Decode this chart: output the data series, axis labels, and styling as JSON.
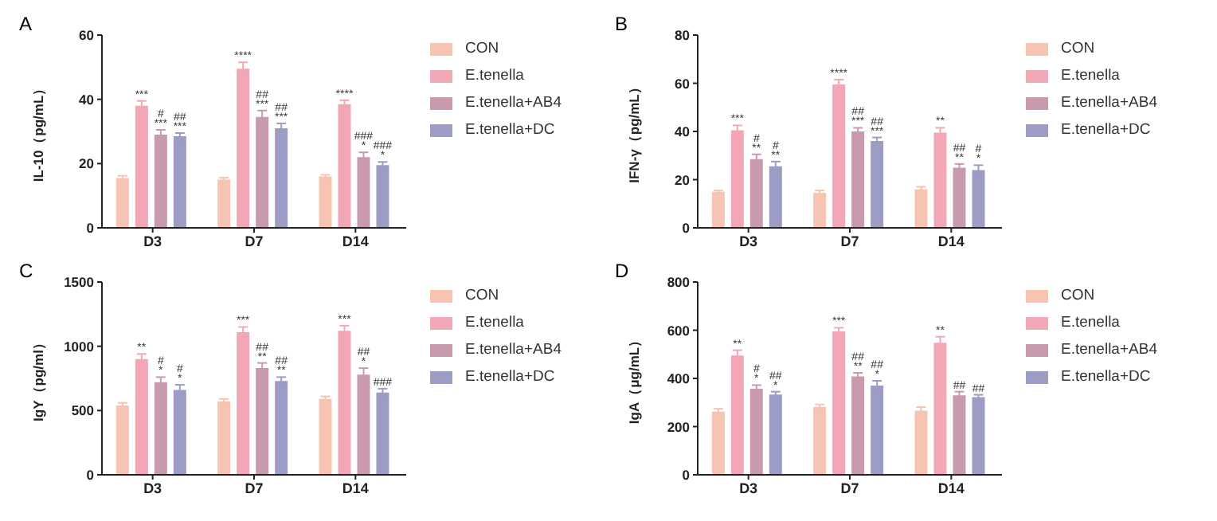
{
  "chart_data": [
    {
      "type": "bar",
      "title": "A",
      "ylabel": "IL-10（pg/mL）",
      "categories": [
        "D3",
        "D7",
        "D14"
      ],
      "ylim": [
        0,
        60
      ],
      "yticks": [
        0,
        20,
        40,
        60
      ],
      "legend": "right",
      "grid": false,
      "series": [
        {
          "name": "CON",
          "color": "#f6c4b0",
          "values": [
            15.5,
            15,
            16
          ],
          "errors": [
            0.7,
            0.6,
            0.5
          ]
        },
        {
          "name": "E.tenella",
          "color": "#f2a7b6",
          "values": [
            38,
            49.5,
            38.5
          ],
          "errors": [
            1.5,
            2,
            1.2
          ],
          "value_labels": [
            "***",
            "****",
            "****"
          ]
        },
        {
          "name": "E.tenella+AB4",
          "color": "#c99aae",
          "values": [
            29,
            34.5,
            22
          ],
          "errors": [
            1.5,
            2,
            1.5
          ],
          "value_labels": [
            "#\n***",
            "##\n***",
            "###\n*"
          ]
        },
        {
          "name": "E.tenella+DC",
          "color": "#9c9cc4",
          "values": [
            28.5,
            31,
            19.5
          ],
          "errors": [
            1,
            1.5,
            1
          ],
          "value_labels": [
            "##\n***",
            "##\n***",
            "###\n*"
          ]
        }
      ]
    },
    {
      "type": "bar",
      "title": "B",
      "ylabel": "IFN-γ（pg/mL）",
      "categories": [
        "D3",
        "D7",
        "D14"
      ],
      "ylim": [
        0,
        80
      ],
      "yticks": [
        0,
        20,
        40,
        60,
        80
      ],
      "legend": "right",
      "grid": false,
      "series": [
        {
          "name": "CON",
          "color": "#f6c4b0",
          "values": [
            15,
            14.5,
            16
          ],
          "errors": [
            0.5,
            1,
            1
          ]
        },
        {
          "name": "E.tenella",
          "color": "#f2a7b6",
          "values": [
            40.5,
            59.5,
            39.5
          ],
          "errors": [
            2,
            2,
            2
          ],
          "value_labels": [
            "***",
            "****",
            "**"
          ]
        },
        {
          "name": "E.tenella+AB4",
          "color": "#c99aae",
          "values": [
            28.5,
            40,
            25
          ],
          "errors": [
            2,
            1.5,
            1.5
          ],
          "value_labels": [
            "#\n**",
            "##\n***",
            "##\n**"
          ]
        },
        {
          "name": "E.tenella+DC",
          "color": "#9c9cc4",
          "values": [
            25.5,
            36,
            24
          ],
          "errors": [
            2,
            1.5,
            2
          ],
          "value_labels": [
            "#\n**",
            "##\n***",
            "#\n*"
          ]
        }
      ]
    },
    {
      "type": "bar",
      "title": "C",
      "ylabel": "IgY（pg/ml）",
      "categories": [
        "D3",
        "D7",
        "D14"
      ],
      "ylim": [
        0,
        1500
      ],
      "yticks": [
        0,
        500,
        1000,
        1500
      ],
      "legend": "right",
      "grid": false,
      "series": [
        {
          "name": "CON",
          "color": "#f6c4b0",
          "values": [
            540,
            570,
            590
          ],
          "errors": [
            20,
            20,
            20
          ]
        },
        {
          "name": "E.tenella",
          "color": "#f2a7b6",
          "values": [
            900,
            1110,
            1120
          ],
          "errors": [
            40,
            40,
            40
          ],
          "value_labels": [
            "**",
            "***",
            "***"
          ]
        },
        {
          "name": "E.tenella+AB4",
          "color": "#c99aae",
          "values": [
            720,
            830,
            780
          ],
          "errors": [
            40,
            40,
            50
          ],
          "value_labels": [
            "#\n*",
            "##\n**",
            "##\n*"
          ]
        },
        {
          "name": "E.tenella+DC",
          "color": "#9c9cc4",
          "values": [
            660,
            730,
            640
          ],
          "errors": [
            40,
            30,
            30
          ],
          "value_labels": [
            "#\n*",
            "##\n**",
            "###"
          ]
        }
      ]
    },
    {
      "type": "bar",
      "title": "D",
      "ylabel": "IgA（μg/mL）",
      "categories": [
        "D3",
        "D7",
        "D14"
      ],
      "ylim": [
        0,
        800
      ],
      "yticks": [
        0,
        200,
        400,
        600,
        800
      ],
      "legend": "right",
      "grid": false,
      "series": [
        {
          "name": "CON",
          "color": "#f6c4b0",
          "values": [
            262,
            282,
            266
          ],
          "errors": [
            12,
            10,
            15
          ]
        },
        {
          "name": "E.tenella",
          "color": "#f2a7b6",
          "values": [
            495,
            595,
            548
          ],
          "errors": [
            22,
            15,
            25
          ],
          "value_labels": [
            "**",
            "***",
            "**"
          ]
        },
        {
          "name": "E.tenella+AB4",
          "color": "#c99aae",
          "values": [
            357,
            408,
            330
          ],
          "errors": [
            15,
            15,
            15
          ],
          "value_labels": [
            "#\n*",
            "##\n**",
            "##"
          ]
        },
        {
          "name": "E.tenella+DC",
          "color": "#9c9cc4",
          "values": [
            333,
            370,
            322
          ],
          "errors": [
            12,
            20,
            10
          ],
          "value_labels": [
            "##\n*",
            "##\n*",
            "##"
          ]
        }
      ]
    }
  ]
}
